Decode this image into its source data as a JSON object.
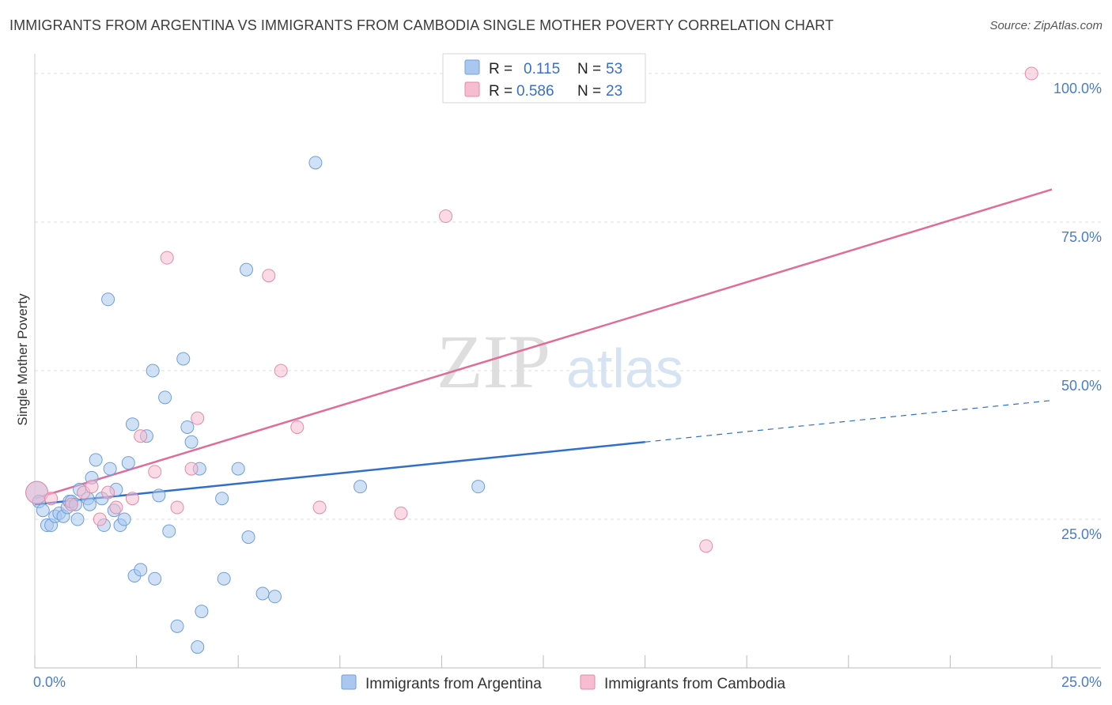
{
  "header": {
    "title": "IMMIGRANTS FROM ARGENTINA VS IMMIGRANTS FROM CAMBODIA SINGLE MOTHER POVERTY CORRELATION CHART",
    "source": "Source: ZipAtlas.com"
  },
  "watermark": {
    "zip": "ZIP",
    "atlas": "atlas"
  },
  "legend": {
    "r_label": "R =",
    "n_label": "N =",
    "series": [
      {
        "r": "0.115",
        "n": "53"
      },
      {
        "r": "0.586",
        "n": "23"
      }
    ]
  },
  "colors": {
    "argentina_fill": "#aac8ef",
    "argentina_stroke": "#6f9fd8",
    "argentina_line": "#2f6fcb",
    "cambodia_fill": "#f6bccf",
    "cambodia_stroke": "#e58aa8",
    "cambodia_line": "#e06d97",
    "tick_text": "#4a7cc9"
  },
  "chart_data": {
    "type": "scatter",
    "title": "IMMIGRANTS FROM ARGENTINA VS IMMIGRANTS FROM CAMBODIA SINGLE MOTHER POVERTY CORRELATION CHART",
    "xlabel": "",
    "ylabel": "Single Mother Poverty",
    "xlim": [
      0,
      25
    ],
    "ylim": [
      0,
      102
    ],
    "x_tick_labels": [
      "0.0%",
      "25.0%"
    ],
    "y_ticks": [
      25,
      50,
      75,
      100
    ],
    "y_tick_labels": [
      "25.0%",
      "50.0%",
      "75.0%",
      "100.0%"
    ],
    "grid": "horizontal dashed",
    "legend_placement": "top-center",
    "series": [
      {
        "name": "Immigrants from Argentina",
        "r": 0.115,
        "n": 53,
        "trend": {
          "x0": 0,
          "y0": 27.5,
          "x1": 15,
          "y1": 38,
          "dashed_to_x": 25,
          "dashed_to_y": 45
        },
        "points": [
          [
            0.05,
            29.5
          ],
          [
            0.1,
            28
          ],
          [
            0.2,
            26.5
          ],
          [
            0.3,
            24
          ],
          [
            0.4,
            24
          ],
          [
            0.5,
            25.5
          ],
          [
            0.6,
            26
          ],
          [
            0.7,
            25.5
          ],
          [
            0.8,
            27
          ],
          [
            0.85,
            28
          ],
          [
            0.9,
            28
          ],
          [
            1.0,
            27.5
          ],
          [
            1.05,
            25
          ],
          [
            1.1,
            30
          ],
          [
            1.3,
            28.5
          ],
          [
            1.35,
            27.5
          ],
          [
            1.4,
            32
          ],
          [
            1.5,
            35
          ],
          [
            1.65,
            28.5
          ],
          [
            1.7,
            24
          ],
          [
            1.8,
            62
          ],
          [
            1.85,
            33.5
          ],
          [
            1.95,
            26.5
          ],
          [
            2.0,
            30
          ],
          [
            2.1,
            24
          ],
          [
            2.2,
            25
          ],
          [
            2.3,
            34.5
          ],
          [
            2.4,
            41
          ],
          [
            2.45,
            15.5
          ],
          [
            2.6,
            16.5
          ],
          [
            2.75,
            39
          ],
          [
            2.9,
            50
          ],
          [
            2.95,
            15
          ],
          [
            3.05,
            29
          ],
          [
            3.2,
            45.5
          ],
          [
            3.3,
            23
          ],
          [
            3.5,
            7
          ],
          [
            3.65,
            52
          ],
          [
            3.75,
            40.5
          ],
          [
            3.85,
            38
          ],
          [
            4.0,
            3.5
          ],
          [
            4.05,
            33.5
          ],
          [
            4.1,
            9.5
          ],
          [
            4.6,
            28.5
          ],
          [
            4.65,
            15
          ],
          [
            5.0,
            33.5
          ],
          [
            5.2,
            67
          ],
          [
            5.25,
            22
          ],
          [
            5.6,
            12.5
          ],
          [
            5.9,
            12
          ],
          [
            6.9,
            85
          ],
          [
            8.0,
            30.5
          ],
          [
            10.9,
            30.5
          ]
        ]
      },
      {
        "name": "Immigrants from Cambodia",
        "r": 0.586,
        "n": 23,
        "trend": {
          "x0": 0,
          "y0": 28.5,
          "x1": 25,
          "y1": 80.5
        },
        "points": [
          [
            0.05,
            29.5
          ],
          [
            0.4,
            28.5
          ],
          [
            0.9,
            27.5
          ],
          [
            1.2,
            29.5
          ],
          [
            1.4,
            30.5
          ],
          [
            1.6,
            25
          ],
          [
            1.8,
            29.5
          ],
          [
            2.0,
            27
          ],
          [
            2.4,
            28.5
          ],
          [
            2.6,
            39
          ],
          [
            2.95,
            33
          ],
          [
            3.25,
            69
          ],
          [
            3.5,
            27
          ],
          [
            3.85,
            33.5
          ],
          [
            4.0,
            42
          ],
          [
            5.75,
            66
          ],
          [
            6.05,
            50
          ],
          [
            6.45,
            40.5
          ],
          [
            7.0,
            27
          ],
          [
            9.0,
            26
          ],
          [
            10.1,
            76
          ],
          [
            16.5,
            20.5
          ],
          [
            24.5,
            100
          ]
        ]
      }
    ]
  }
}
